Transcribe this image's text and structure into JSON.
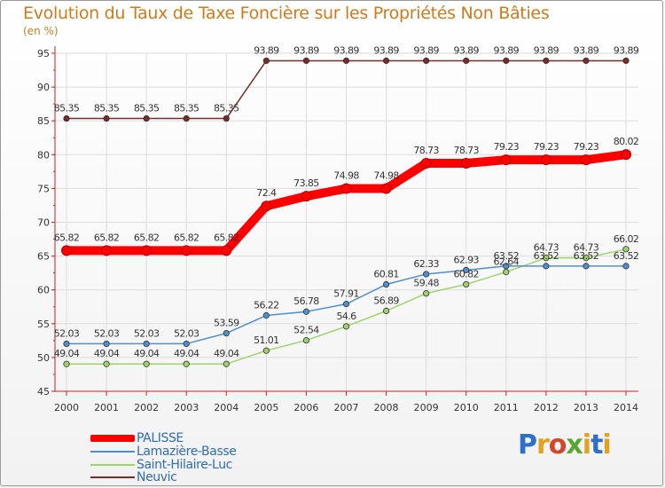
{
  "chart_data": {
    "type": "line",
    "title": "Evolution du Taux de Taxe Foncière sur les Propriétés Non Bâties",
    "subtitle": "(en %)",
    "ylim": [
      45,
      95
    ],
    "yticks": [
      "45",
      "50",
      "55",
      "60",
      "65",
      "70",
      "75",
      "80",
      "85",
      "90",
      "95"
    ],
    "categories": [
      "2000",
      "2001",
      "2002",
      "2003",
      "2004",
      "2005",
      "2006",
      "2007",
      "2008",
      "2009",
      "2010",
      "2011",
      "2012",
      "2013",
      "2014"
    ],
    "series": [
      {
        "name": "Neuvic",
        "color": "#7a2a2a",
        "values": [
          85.35,
          85.35,
          85.35,
          85.35,
          85.35,
          93.89,
          93.89,
          93.89,
          93.89,
          93.89,
          93.89,
          93.89,
          93.89,
          93.89,
          93.89
        ],
        "labels": [
          "85.35",
          "85.35",
          "85.35",
          "85.35",
          "85.35",
          "93.89",
          "93.89",
          "93.89",
          "93.89",
          "93.89",
          "93.89",
          "93.89",
          "93.89",
          "93.89",
          "93.89"
        ]
      },
      {
        "name": "Saint-Hilaire-Luc",
        "color": "#9fd36a",
        "values": [
          49.04,
          49.04,
          49.04,
          49.04,
          49.04,
          51.01,
          52.54,
          54.6,
          56.89,
          59.48,
          60.82,
          62.64,
          64.73,
          64.73,
          66.02
        ],
        "labels": [
          "49.04",
          "49.04",
          "49.04",
          "49.04",
          "49.04",
          "51.01",
          "52.54",
          "54.6",
          "56.89",
          "59.48",
          "60.82",
          "62.64",
          "64.73",
          "64.73",
          "66.02"
        ]
      },
      {
        "name": "Lamazière-Basse",
        "color": "#4f8fce",
        "values": [
          52.03,
          52.03,
          52.03,
          52.03,
          53.59,
          56.22,
          56.78,
          57.91,
          60.81,
          62.33,
          62.93,
          63.52,
          63.52,
          63.52,
          63.52
        ],
        "labels": [
          "52.03",
          "52.03",
          "52.03",
          "52.03",
          "53.59",
          "56.22",
          "56.78",
          "57.91",
          "60.81",
          "62.33",
          "62.93",
          "63.52",
          "63.52",
          "63.52",
          "63.52"
        ]
      },
      {
        "name": "PALISSE",
        "color": "#ff0000",
        "values": [
          65.82,
          65.82,
          65.82,
          65.82,
          65.82,
          72.4,
          73.85,
          74.98,
          74.98,
          78.73,
          78.73,
          79.23,
          79.23,
          79.23,
          80.02
        ],
        "labels": [
          "65.82",
          "65.82",
          "65.82",
          "65.82",
          "65.82",
          "72.4",
          "73.85",
          "74.98",
          "74.98",
          "78.73",
          "78.73",
          "79.23",
          "79.23",
          "79.23",
          "80.02"
        ]
      }
    ],
    "legend": [
      {
        "name": "PALISSE",
        "color": "#ff0000"
      },
      {
        "name": "Lamazière-Basse",
        "color": "#4f8fce"
      },
      {
        "name": "Saint-Hilaire-Luc",
        "color": "#9fd36a"
      },
      {
        "name": "Neuvic",
        "color": "#7a2a2a"
      }
    ]
  },
  "logo": {
    "p": "P",
    "r": "r",
    "o": "o",
    "x": "x",
    "i": "i",
    "t": "t",
    "i2": "i"
  }
}
